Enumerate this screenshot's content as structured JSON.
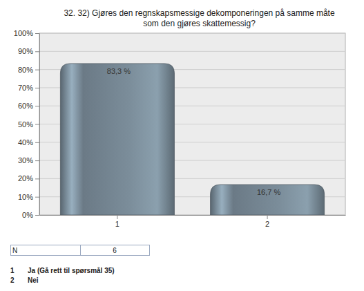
{
  "chart_data": {
    "type": "bar",
    "title": "32. 32) Gjøres den regnskapsmessige dekomponeringen på samme måte som den gjøres skattemessig?",
    "categories": [
      "1",
      "2"
    ],
    "values": [
      83.3,
      16.7
    ],
    "value_labels": [
      "83,3 %",
      "16,7 %"
    ],
    "data_labels": true,
    "color": "#7b8d9a",
    "ylim": [
      0,
      100
    ],
    "yticks": [
      {
        "value": 0,
        "label": "0%"
      },
      {
        "value": 10,
        "label": "10%"
      },
      {
        "value": 20,
        "label": "20%"
      },
      {
        "value": 30,
        "label": "30%"
      },
      {
        "value": 40,
        "label": "40%"
      },
      {
        "value": 50,
        "label": "50%"
      },
      {
        "value": 60,
        "label": "60%"
      },
      {
        "value": 70,
        "label": "70%"
      },
      {
        "value": 80,
        "label": "80%"
      },
      {
        "value": 90,
        "label": "90%"
      },
      {
        "value": 100,
        "label": "100%"
      }
    ],
    "grid": true
  },
  "summary": {
    "label": "N",
    "value": 6
  },
  "answer_options": [
    {
      "code": "1",
      "label": "Ja (Gå rett til spørsmål 35)"
    },
    {
      "code": "2",
      "label": "Nei"
    }
  ]
}
